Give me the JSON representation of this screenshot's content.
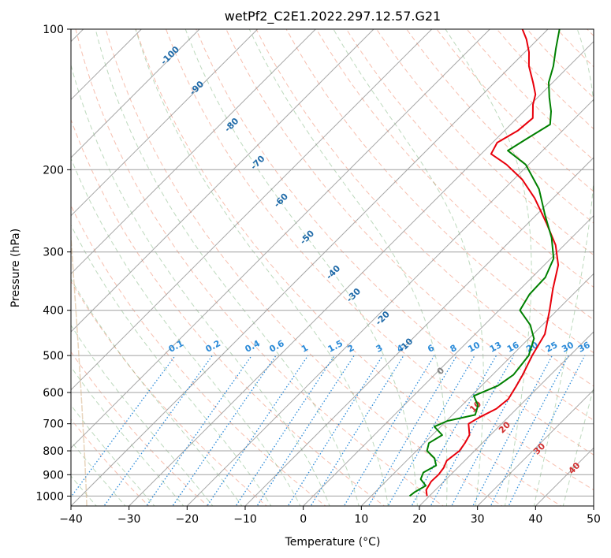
{
  "chart_data": {
    "type": "line",
    "subtype": "skew-T log-P diagram",
    "title": "wetPf2_C2E1.2022.297.12.57.G21",
    "xlabel": "Temperature (°C)",
    "ylabel": "Pressure (hPa)",
    "xlim": [
      -40,
      50
    ],
    "ylim": [
      1050,
      100
    ],
    "y_scale": "log",
    "x_ticks": [
      -40,
      -30,
      -20,
      -10,
      0,
      10,
      20,
      30,
      40,
      50
    ],
    "y_ticks": [
      100,
      200,
      300,
      400,
      500,
      600,
      700,
      800,
      900,
      1000
    ],
    "grid": "horizontal at pressure ticks, skewed isotherms",
    "series": [
      {
        "color": "#e8000b",
        "points": [
          {
            "p": 1000,
            "t": 19.6
          },
          {
            "p": 970,
            "t": 18.4
          },
          {
            "p": 930,
            "t": 17.8
          },
          {
            "p": 900,
            "t": 17.9
          },
          {
            "p": 870,
            "t": 17.6
          },
          {
            "p": 840,
            "t": 16.9
          },
          {
            "p": 800,
            "t": 17.4
          },
          {
            "p": 770,
            "t": 17.0
          },
          {
            "p": 740,
            "t": 16.4
          },
          {
            "p": 700,
            "t": 14.3
          },
          {
            "p": 680,
            "t": 15.0
          },
          {
            "p": 650,
            "t": 16.5
          },
          {
            "p": 620,
            "t": 16.9
          },
          {
            "p": 580,
            "t": 16.0
          },
          {
            "p": 550,
            "t": 15.2
          },
          {
            "p": 500,
            "t": 13.5
          },
          {
            "p": 450,
            "t": 12.0
          },
          {
            "p": 400,
            "t": 8.7
          },
          {
            "p": 360,
            "t": 5.6
          },
          {
            "p": 320,
            "t": 2.4
          },
          {
            "p": 290,
            "t": -1.5
          },
          {
            "p": 260,
            "t": -6.9
          },
          {
            "p": 230,
            "t": -13.2
          },
          {
            "p": 210,
            "t": -18.5
          },
          {
            "p": 195,
            "t": -23.8
          },
          {
            "p": 185,
            "t": -28.3
          },
          {
            "p": 175,
            "t": -29.2
          },
          {
            "p": 165,
            "t": -27.7
          },
          {
            "p": 155,
            "t": -27.3
          },
          {
            "p": 145,
            "t": -29.6
          },
          {
            "p": 138,
            "t": -30.9
          },
          {
            "p": 130,
            "t": -33.4
          },
          {
            "p": 120,
            "t": -36.9
          },
          {
            "p": 112,
            "t": -39.3
          },
          {
            "p": 105,
            "t": -42.0
          },
          {
            "p": 100,
            "t": -44.4
          }
        ]
      },
      {
        "color": "#008000",
        "points": [
          {
            "p": 1000,
            "t": 16.6
          },
          {
            "p": 980,
            "t": 16.8
          },
          {
            "p": 950,
            "t": 17.6
          },
          {
            "p": 920,
            "t": 15.6
          },
          {
            "p": 890,
            "t": 14.9
          },
          {
            "p": 860,
            "t": 15.9
          },
          {
            "p": 830,
            "t": 14.4
          },
          {
            "p": 800,
            "t": 11.8
          },
          {
            "p": 770,
            "t": 10.8
          },
          {
            "p": 740,
            "t": 11.7
          },
          {
            "p": 710,
            "t": 8.9
          },
          {
            "p": 690,
            "t": 10.2
          },
          {
            "p": 670,
            "t": 13.9
          },
          {
            "p": 640,
            "t": 12.8
          },
          {
            "p": 610,
            "t": 10.4
          },
          {
            "p": 580,
            "t": 12.8
          },
          {
            "p": 550,
            "t": 13.6
          },
          {
            "p": 500,
            "t": 12.9
          },
          {
            "p": 460,
            "t": 10.9
          },
          {
            "p": 430,
            "t": 7.9
          },
          {
            "p": 400,
            "t": 3.6
          },
          {
            "p": 370,
            "t": 2.5
          },
          {
            "p": 340,
            "t": 2.3
          },
          {
            "p": 310,
            "t": 0.5
          },
          {
            "p": 280,
            "t": -3.4
          },
          {
            "p": 250,
            "t": -8.5
          },
          {
            "p": 220,
            "t": -14.0
          },
          {
            "p": 195,
            "t": -20.5
          },
          {
            "p": 182,
            "t": -26.0
          },
          {
            "p": 172,
            "t": -24.8
          },
          {
            "p": 160,
            "t": -23.2
          },
          {
            "p": 150,
            "t": -25.3
          },
          {
            "p": 140,
            "t": -28.0
          },
          {
            "p": 130,
            "t": -30.7
          },
          {
            "p": 120,
            "t": -32.7
          },
          {
            "p": 110,
            "t": -35.3
          },
          {
            "p": 100,
            "t": -38.0
          }
        ]
      }
    ],
    "dry_adiabats_labels": [
      {
        "text": "-100",
        "p": 115
      },
      {
        "text": "-90",
        "p": 135
      },
      {
        "text": "-80",
        "p": 162
      },
      {
        "text": "-70",
        "p": 195
      },
      {
        "text": "-60",
        "p": 235
      },
      {
        "text": "-50",
        "p": 282
      },
      {
        "text": "-40",
        "p": 335
      },
      {
        "text": "-30",
        "p": 375
      },
      {
        "text": "-20",
        "p": 420
      },
      {
        "text": "-10",
        "p": 480
      }
    ],
    "mixing_ratio_labels": [
      "0.1",
      "0.2",
      "0.4",
      "0.6",
      "1",
      "1.5",
      "2",
      "3",
      "4",
      "6",
      "8",
      "10",
      "13",
      "16",
      "20",
      "25",
      "30",
      "36"
    ],
    "moist_adiabat_labels": [
      {
        "text": "0",
        "t": 24,
        "p": 545
      },
      {
        "text": "10",
        "t": 30,
        "p": 650
      },
      {
        "text": "20",
        "t": 35,
        "p": 720
      },
      {
        "text": "30",
        "t": 41,
        "p": 800
      },
      {
        "text": "40",
        "t": 47,
        "p": 880
      }
    ]
  }
}
